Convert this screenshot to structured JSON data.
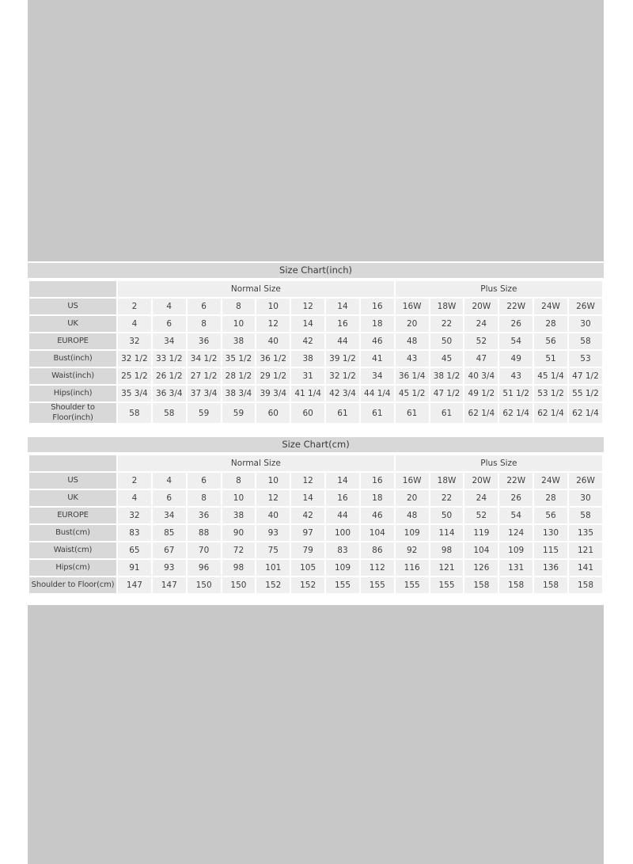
{
  "colors": {
    "page_background": "#ffffff",
    "outer_panel_gray": "#c8c8c8",
    "title_bar_gray": "#d8d8d8",
    "label_cell_gray": "#d8d8d8",
    "data_cell_gray": "#efefef",
    "text_color": "#3f3f3f"
  },
  "tables": [
    {
      "title": "Size Chart(inch)",
      "group_headers": [
        {
          "label": "",
          "span": 1
        },
        {
          "label": "Normal Size",
          "span": 8
        },
        {
          "label": "Plus Size",
          "span": 6
        }
      ],
      "rows": [
        {
          "label": "US",
          "values": [
            "2",
            "4",
            "6",
            "8",
            "10",
            "12",
            "14",
            "16",
            "16W",
            "18W",
            "20W",
            "22W",
            "24W",
            "26W"
          ]
        },
        {
          "label": "UK",
          "values": [
            "4",
            "6",
            "8",
            "10",
            "12",
            "14",
            "16",
            "18",
            "20",
            "22",
            "24",
            "26",
            "28",
            "30"
          ]
        },
        {
          "label": "EUROPE",
          "values": [
            "32",
            "34",
            "36",
            "38",
            "40",
            "42",
            "44",
            "46",
            "48",
            "50",
            "52",
            "54",
            "56",
            "58"
          ]
        },
        {
          "label": "Bust(inch)",
          "values": [
            "32 1/2",
            "33 1/2",
            "34 1/2",
            "35 1/2",
            "36 1/2",
            "38",
            "39 1/2",
            "41",
            "43",
            "45",
            "47",
            "49",
            "51",
            "53"
          ]
        },
        {
          "label": "Waist(inch)",
          "values": [
            "25 1/2",
            "26 1/2",
            "27 1/2",
            "28 1/2",
            "29 1/2",
            "31",
            "32 1/2",
            "34",
            "36 1/4",
            "38 1/2",
            "40 3/4",
            "43",
            "45 1/4",
            "47 1/2"
          ]
        },
        {
          "label": "Hips(inch)",
          "values": [
            "35 3/4",
            "36 3/4",
            "37 3/4",
            "38 3/4",
            "39 3/4",
            "41 1/4",
            "42 3/4",
            "44 1/4",
            "45 1/2",
            "47 1/2",
            "49 1/2",
            "51 1/2",
            "53 1/2",
            "55 1/2"
          ]
        },
        {
          "label": "Shoulder to Floor(inch)",
          "values": [
            "58",
            "58",
            "59",
            "59",
            "60",
            "60",
            "61",
            "61",
            "61",
            "61",
            "62 1/4",
            "62 1/4",
            "62 1/4",
            "62 1/4"
          ]
        }
      ]
    },
    {
      "title": "Size Chart(cm)",
      "group_headers": [
        {
          "label": "",
          "span": 1
        },
        {
          "label": "Normal Size",
          "span": 8
        },
        {
          "label": "Plus Size",
          "span": 6
        }
      ],
      "rows": [
        {
          "label": "US",
          "values": [
            "2",
            "4",
            "6",
            "8",
            "10",
            "12",
            "14",
            "16",
            "16W",
            "18W",
            "20W",
            "22W",
            "24W",
            "26W"
          ]
        },
        {
          "label": "UK",
          "values": [
            "4",
            "6",
            "8",
            "10",
            "12",
            "14",
            "16",
            "18",
            "20",
            "22",
            "24",
            "26",
            "28",
            "30"
          ]
        },
        {
          "label": "EUROPE",
          "values": [
            "32",
            "34",
            "36",
            "38",
            "40",
            "42",
            "44",
            "46",
            "48",
            "50",
            "52",
            "54",
            "56",
            "58"
          ]
        },
        {
          "label": "Bust(cm)",
          "values": [
            "83",
            "85",
            "88",
            "90",
            "93",
            "97",
            "100",
            "104",
            "109",
            "114",
            "119",
            "124",
            "130",
            "135"
          ]
        },
        {
          "label": "Waist(cm)",
          "values": [
            "65",
            "67",
            "70",
            "72",
            "75",
            "79",
            "83",
            "86",
            "92",
            "98",
            "104",
            "109",
            "115",
            "121"
          ]
        },
        {
          "label": "Hips(cm)",
          "values": [
            "91",
            "93",
            "96",
            "98",
            "101",
            "105",
            "109",
            "112",
            "116",
            "121",
            "126",
            "131",
            "136",
            "141"
          ]
        },
        {
          "label": "Shoulder to Floor(cm)",
          "values": [
            "147",
            "147",
            "150",
            "150",
            "152",
            "152",
            "155",
            "155",
            "155",
            "155",
            "158",
            "158",
            "158",
            "158"
          ]
        }
      ]
    }
  ]
}
